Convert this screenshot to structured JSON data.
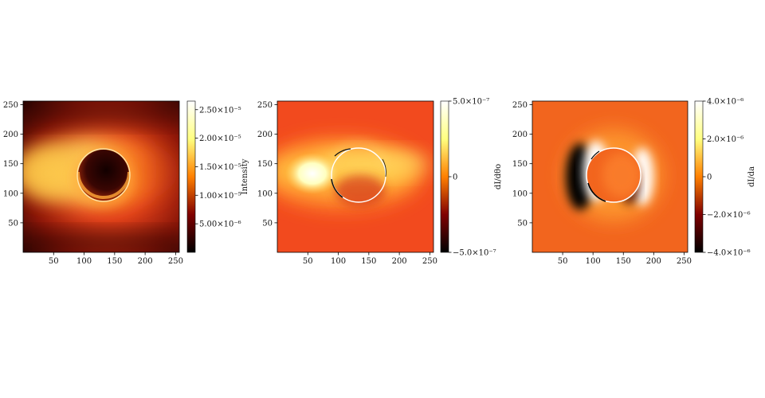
{
  "chart_data": [
    {
      "type": "heatmap",
      "colormap": "afmhot",
      "colorbar_label": "Intensity",
      "xlim": [
        0,
        256
      ],
      "ylim": [
        0,
        256
      ],
      "xticks": [
        "50",
        "100",
        "150",
        "200",
        "250"
      ],
      "yticks": [
        "50",
        "100",
        "150",
        "200",
        "250"
      ],
      "colorbar_range": [
        0,
        2.65e-05
      ],
      "colorbar_ticks": [
        "5.00×10⁻⁶",
        "1.00×10⁻⁵",
        "1.50×10⁻⁵",
        "2.00×10⁻⁵",
        "2.50×10⁻⁵"
      ],
      "colorbar_tick_values": [
        5e-06,
        1e-05,
        1.5e-05,
        2e-05,
        2.5e-05
      ]
    },
    {
      "type": "heatmap",
      "colormap": "afmhot",
      "colorbar_label": "dI/dθo",
      "xlim": [
        0,
        256
      ],
      "ylim": [
        0,
        256
      ],
      "xticks": [
        "50",
        "100",
        "150",
        "200",
        "250"
      ],
      "yticks": [
        "50",
        "100",
        "150",
        "200",
        "250"
      ],
      "colorbar_range": [
        -5e-07,
        5e-07
      ],
      "colorbar_ticks": [
        "−5.0×10⁻⁷",
        "0",
        "5.0×10⁻⁷"
      ],
      "colorbar_tick_values": [
        -5e-07,
        0,
        5e-07
      ]
    },
    {
      "type": "heatmap",
      "colormap": "afmhot",
      "colorbar_label": "dI/da",
      "xlim": [
        0,
        256
      ],
      "ylim": [
        0,
        256
      ],
      "xticks": [
        "50",
        "100",
        "150",
        "200",
        "250"
      ],
      "yticks": [
        "50",
        "100",
        "150",
        "200",
        "250"
      ],
      "colorbar_range": [
        -4e-06,
        4e-06
      ],
      "colorbar_ticks": [
        "−4.0×10⁻⁶",
        "−2.0×10⁻⁶",
        "0",
        "2.0×10⁻⁶",
        "4.0×10⁻⁶"
      ],
      "colorbar_tick_values": [
        -4e-06,
        -2e-06,
        0,
        2e-06,
        4e-06
      ]
    }
  ]
}
